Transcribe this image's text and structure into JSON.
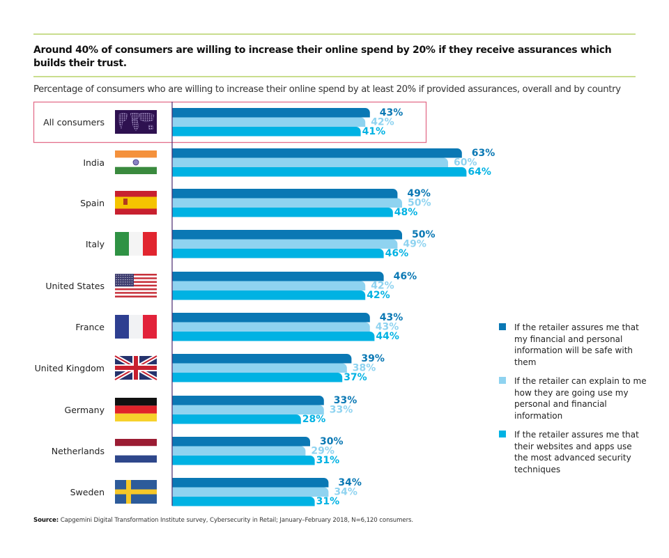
{
  "headline": "Around 40% of consumers are willing to increase their online spend by 20% if they receive assurances which builds their trust.",
  "subtitle": "Percentage of consumers who are willing to increase their online spend by at least 20% if provided assurances, overall and by country",
  "source_label": "Source:",
  "source_text": " Capgemini Digital Transformation Institute survey, Cybersecurity in Retail; January–February 2018, N=6,120 consumers.",
  "colors": {
    "series1": "#0a78b4",
    "series2": "#8fd3f0",
    "series3": "#00b2e3",
    "rule": "#c9dd8e",
    "highlight_box": "#e36e8a",
    "axis": "#4b2a6e"
  },
  "chart_data": {
    "type": "bar",
    "orientation": "horizontal",
    "title": "Percentage of consumers who are willing to increase their online spend by at least 20% if provided assurances, overall and by country",
    "xlabel": "",
    "ylabel": "",
    "xlim": [
      0,
      100
    ],
    "grid": false,
    "legend_position": "right",
    "highlighted_category": "All consumers",
    "categories": [
      "All consumers",
      "India",
      "Spain",
      "Italy",
      "United States",
      "France",
      "United Kingdom",
      "Germany",
      "Netherlands",
      "Sweden"
    ],
    "category_icons": [
      "world-map-icon",
      "india-flag-icon",
      "spain-flag-icon",
      "italy-flag-icon",
      "usa-flag-icon",
      "france-flag-icon",
      "uk-flag-icon",
      "germany-flag-icon",
      "netherlands-flag-icon",
      "sweden-flag-icon"
    ],
    "series": [
      {
        "name": "If the retailer assures me that my financial and personal information will be safe with them",
        "values": [
          43,
          63,
          49,
          50,
          46,
          43,
          39,
          33,
          30,
          34
        ]
      },
      {
        "name": "If the retailer can explain to me how they are going use my personal and financial information",
        "values": [
          42,
          60,
          50,
          49,
          42,
          43,
          38,
          33,
          29,
          34
        ]
      },
      {
        "name": "If the retailer assures me that their websites and apps use the most advanced security techniques",
        "values": [
          41,
          64,
          48,
          46,
          42,
          44,
          37,
          28,
          31,
          31
        ]
      }
    ],
    "value_suffix": "%"
  }
}
